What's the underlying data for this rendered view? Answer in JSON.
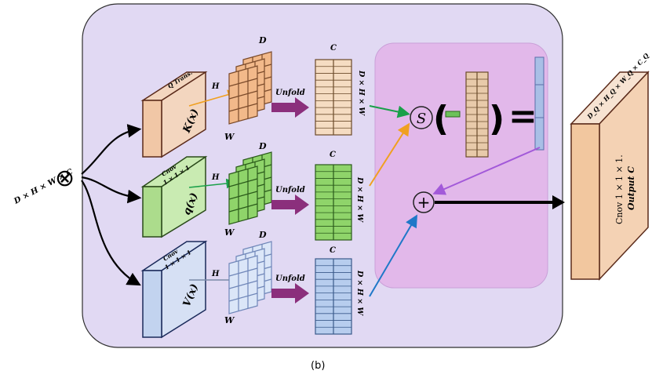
{
  "figure": {
    "caption": "(b)",
    "input_label": "D × H × W × C",
    "input_symbol": "⊗"
  },
  "branches": [
    {
      "op": "Q Trans.",
      "func": "K(x)",
      "grid_h": "H",
      "grid_w": "W",
      "grid_d": "D",
      "unfold": "Unfold",
      "mat_c": "C",
      "mat_side": "D × H × W",
      "color": "#f2b98a"
    },
    {
      "op_line1": "Cnov",
      "op_line2": "1 × 1 × 1",
      "func": "q(x)",
      "grid_h": "H",
      "grid_w": "W",
      "grid_d": "D",
      "unfold": "Unfold",
      "mat_c": "C",
      "mat_side": "D × H × W",
      "color": "#8fd46a"
    },
    {
      "op_line1": "Cnov",
      "op_line2": "1 × 1 × 1",
      "func": "V(x)",
      "grid_h": "H",
      "grid_w": "W",
      "grid_d": "D",
      "unfold": "Unfold",
      "mat_c": "C",
      "mat_side": "D × H × W",
      "color": "#b7cdee"
    }
  ],
  "ops": {
    "softmax": "S",
    "paren_open": "(",
    "paren_close": ")",
    "equals": "=",
    "add": "+"
  },
  "output": {
    "top_label": "D_Q × H_Q × W_Q × C_Q",
    "line1": "Cnov 1 × 1 × 1.",
    "line2": "Output C"
  },
  "colors": {
    "outer_panel": "#e1d9f3",
    "inner_panel": "#e2b8ea",
    "unfold_arrow": "#8b2f7c",
    "orange_arrow": "#f0a020",
    "green_arrow": "#1aa04a",
    "blue_arrow": "#1f78c8",
    "purple_arrow": "#a259d9",
    "output_front": "#f4d2b4"
  }
}
